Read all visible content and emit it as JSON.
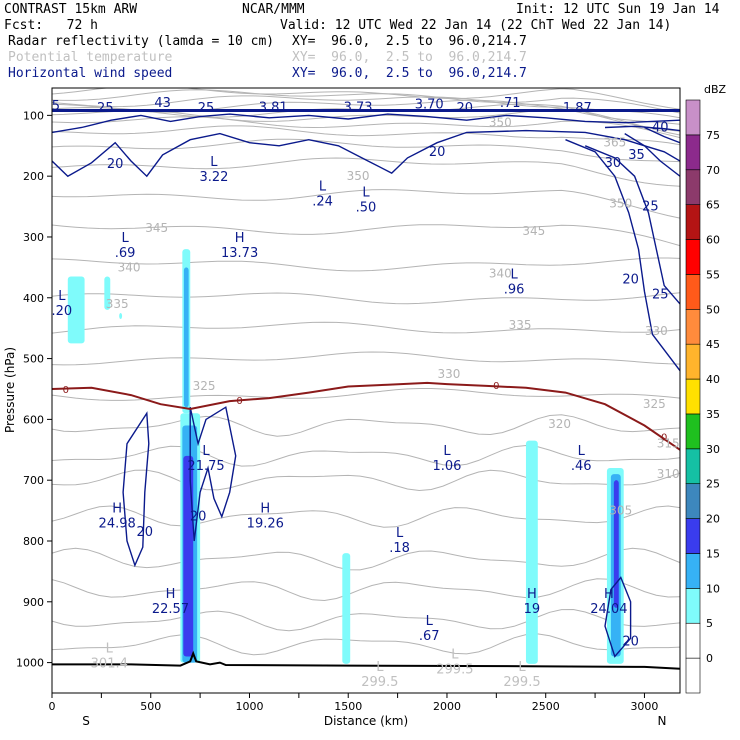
{
  "header": {
    "model": "CONTRAST 15km ARW",
    "org": "NCAR/MMM",
    "init": "Init: 12 UTC Sun 19 Jan 14",
    "fcst": "Fcst:   72 h",
    "valid": "Valid: 12 UTC Wed 22 Jan 14 (22 ChT Wed 22 Jan 14)",
    "fields": [
      {
        "name": "Radar reflectivity (lamda = 10 cm)",
        "coords": "XY=  96.0,  2.5 to  96.0,214.7"
      },
      {
        "name": "Potential temperature",
        "coords": "XY=  96.0,  2.5 to  96.0,214.7"
      },
      {
        "name": "Horizontal wind speed",
        "coords": "XY=  96.0,  2.5 to  96.0,214.7"
      }
    ]
  },
  "chart_data": {
    "type": "cross-section",
    "xlabel": "Distance (km)",
    "ylabel": "Pressure (hPa)",
    "xlim": [
      0,
      3180
    ],
    "ylim": [
      1050,
      55
    ],
    "x_ticks": [
      0,
      250,
      500,
      750,
      1000,
      1250,
      1500,
      1750,
      2000,
      2250,
      2500,
      2750,
      3000
    ],
    "x_tick_labels": [
      "0",
      "500",
      "1000",
      "1500",
      "2000",
      "2500",
      "3000"
    ],
    "x_tick_label_values": [
      0,
      500,
      1000,
      1500,
      2000,
      2500,
      3000
    ],
    "y_ticks": [
      100,
      200,
      300,
      400,
      500,
      600,
      700,
      800,
      900,
      1000
    ],
    "end_labels": {
      "left": "S",
      "right": "N"
    },
    "colorbar": {
      "unit": "dBZ",
      "levels": [
        0,
        5,
        10,
        15,
        20,
        25,
        30,
        35,
        40,
        45,
        50,
        55,
        60,
        65,
        70,
        75
      ],
      "colors": [
        "#ffffff",
        "#ffffff",
        "#7ffbfb",
        "#36b2f5",
        "#3a3cee",
        "#3d87bd",
        "#15c0a4",
        "#1fc01f",
        "#ffe000",
        "#ffb42c",
        "#ff8b3c",
        "#ff5a1a",
        "#ff0000",
        "#b41414",
        "#8c3a6b",
        "#8c2a8c",
        "#c890c8"
      ]
    },
    "freezing_level": {
      "label": "0",
      "points": [
        [
          0,
          550
        ],
        [
          200,
          548
        ],
        [
          400,
          560
        ],
        [
          550,
          575
        ],
        [
          700,
          583
        ],
        [
          900,
          570
        ],
        [
          1100,
          565
        ],
        [
          1300,
          556
        ],
        [
          1500,
          546
        ],
        [
          1700,
          543
        ],
        [
          1900,
          540
        ],
        [
          2000,
          542
        ],
        [
          2200,
          545
        ],
        [
          2400,
          548
        ],
        [
          2600,
          556
        ],
        [
          2800,
          575
        ],
        [
          3000,
          610
        ],
        [
          3180,
          650
        ]
      ]
    },
    "wind_labels": [
      {
        "x": 20,
        "p": 85,
        "text": "5"
      },
      {
        "x": 270,
        "p": 88,
        "text": "25"
      },
      {
        "x": 560,
        "p": 80,
        "text": "43"
      },
      {
        "x": 780,
        "p": 88,
        "text": "25"
      },
      {
        "x": 1120,
        "p": 87,
        "text": "3.81"
      },
      {
        "x": 1550,
        "p": 87,
        "text": "3.73"
      },
      {
        "x": 1910,
        "p": 82,
        "text": "3.70"
      },
      {
        "x": 2090,
        "p": 88,
        "text": "20"
      },
      {
        "x": 2320,
        "p": 80,
        "text": ".71"
      },
      {
        "x": 2660,
        "p": 88,
        "text": "1.87"
      },
      {
        "x": 3080,
        "p": 120,
        "text": "40"
      },
      {
        "x": 320,
        "p": 180,
        "text": "20"
      },
      {
        "x": 1950,
        "p": 160,
        "text": "20"
      },
      {
        "x": 2840,
        "p": 178,
        "text": "30"
      },
      {
        "x": 2960,
        "p": 165,
        "text": "35"
      },
      {
        "x": 3030,
        "p": 250,
        "text": "25"
      },
      {
        "x": 2930,
        "p": 370,
        "text": "20"
      },
      {
        "x": 3080,
        "p": 395,
        "text": "25"
      },
      {
        "x": 470,
        "p": 785,
        "text": "20"
      },
      {
        "x": 740,
        "p": 760,
        "text": "20"
      },
      {
        "x": 2930,
        "p": 965,
        "text": "20"
      }
    ],
    "theta_labels": [
      {
        "x": 530,
        "p": 285,
        "text": "345"
      },
      {
        "x": 390,
        "p": 350,
        "text": "340"
      },
      {
        "x": 330,
        "p": 410,
        "text": "335"
      },
      {
        "x": 1550,
        "p": 200,
        "text": "350"
      },
      {
        "x": 2440,
        "p": 290,
        "text": "345"
      },
      {
        "x": 2270,
        "p": 360,
        "text": "340"
      },
      {
        "x": 2370,
        "p": 445,
        "text": "335"
      },
      {
        "x": 2010,
        "p": 525,
        "text": "330"
      },
      {
        "x": 770,
        "p": 545,
        "text": "325"
      },
      {
        "x": 2570,
        "p": 608,
        "text": "320"
      },
      {
        "x": 3050,
        "p": 575,
        "text": "325"
      },
      {
        "x": 3120,
        "p": 640,
        "text": "315"
      },
      {
        "x": 3120,
        "p": 690,
        "text": "310"
      },
      {
        "x": 2880,
        "p": 750,
        "text": "305"
      },
      {
        "x": 3060,
        "p": 455,
        "text": "330"
      },
      {
        "x": 2850,
        "p": 145,
        "text": "365"
      },
      {
        "x": 2880,
        "p": 245,
        "text": "350"
      },
      {
        "x": 2270,
        "p": 112,
        "text": "350"
      }
    ],
    "dark_labels": [
      {
        "x": 1910,
        "p": 110,
        "text": "..."
      }
    ],
    "extrema": [
      {
        "letter": "L",
        "value": "3.22",
        "x": 820,
        "p": 190,
        "color": "#0b1a8c"
      },
      {
        "letter": "L",
        "value": ".24",
        "x": 1370,
        "p": 230,
        "color": "#0b1a8c"
      },
      {
        "letter": "L",
        "value": ".50",
        "x": 1590,
        "p": 240,
        "color": "#0b1a8c"
      },
      {
        "letter": "L",
        "value": ".69",
        "x": 370,
        "p": 315,
        "color": "#0b1a8c"
      },
      {
        "letter": "H",
        "value": "13.73",
        "x": 950,
        "p": 315,
        "color": "#0b1a8c"
      },
      {
        "letter": "L",
        "value": ".96",
        "x": 2340,
        "p": 375,
        "color": "#0b1a8c"
      },
      {
        "letter": "L",
        "value": ".20",
        "x": 50,
        "p": 410,
        "color": "#0b1a8c"
      },
      {
        "letter": "L",
        "value": "21.75",
        "x": 780,
        "p": 665,
        "color": "#0b1a8c"
      },
      {
        "letter": "L",
        "value": "1.06",
        "x": 2000,
        "p": 665,
        "color": "#0b1a8c"
      },
      {
        "letter": "L",
        "value": ".46",
        "x": 2680,
        "p": 665,
        "color": "#0b1a8c"
      },
      {
        "letter": "H",
        "value": "24.98",
        "x": 330,
        "p": 760,
        "color": "#0b1a8c"
      },
      {
        "letter": "H",
        "value": "19.26",
        "x": 1080,
        "p": 760,
        "color": "#0b1a8c"
      },
      {
        "letter": "L",
        "value": ".18",
        "x": 1760,
        "p": 800,
        "color": "#0b1a8c"
      },
      {
        "letter": "H",
        "value": "22.57",
        "x": 600,
        "p": 900,
        "color": "#0b1a8c"
      },
      {
        "letter": "H",
        "value": "19",
        "x": 2430,
        "p": 900,
        "color": "#0b1a8c"
      },
      {
        "letter": "H",
        "value": "24.04",
        "x": 2820,
        "p": 900,
        "color": "#0b1a8c"
      },
      {
        "letter": "L",
        "value": ".67",
        "x": 1910,
        "p": 945,
        "color": "#0b1a8c"
      },
      {
        "letter": "L",
        "value": "301.4",
        "x": 290,
        "p": 990,
        "color": "#c0c0c0"
      },
      {
        "letter": "L",
        "value": "299.5",
        "x": 1660,
        "p": 1020,
        "color": "#c0c0c0"
      },
      {
        "letter": "L",
        "value": "299.5",
        "x": 2040,
        "p": 1000,
        "color": "#c0c0c0"
      },
      {
        "letter": "L",
        "value": "299.5",
        "x": 2380,
        "p": 1020,
        "color": "#c0c0c0"
      }
    ],
    "reflectivity": [
      {
        "x0": 80,
        "x1": 165,
        "p0": 365,
        "p1": 475,
        "dbz": 7
      },
      {
        "x0": 265,
        "x1": 295,
        "p0": 365,
        "p1": 420,
        "dbz": 7
      },
      {
        "x0": 340,
        "x1": 355,
        "p0": 425,
        "p1": 435,
        "dbz": 7
      },
      {
        "x0": 660,
        "x1": 700,
        "p0": 320,
        "p1": 590,
        "dbz": 7
      },
      {
        "x0": 668,
        "x1": 692,
        "p0": 350,
        "p1": 580,
        "dbz": 12
      },
      {
        "x0": 650,
        "x1": 750,
        "p0": 590,
        "p1": 1000,
        "dbz": 7
      },
      {
        "x0": 660,
        "x1": 735,
        "p0": 610,
        "p1": 1000,
        "dbz": 12
      },
      {
        "x0": 665,
        "x1": 715,
        "p0": 660,
        "p1": 990,
        "dbz": 17
      },
      {
        "x0": 1470,
        "x1": 1510,
        "p0": 820,
        "p1": 1002,
        "dbz": 7
      },
      {
        "x0": 2400,
        "x1": 2460,
        "p0": 635,
        "p1": 1002,
        "dbz": 7
      },
      {
        "x0": 2810,
        "x1": 2895,
        "p0": 680,
        "p1": 1002,
        "dbz": 7
      },
      {
        "x0": 2830,
        "x1": 2880,
        "p0": 690,
        "p1": 990,
        "dbz": 12
      },
      {
        "x0": 2845,
        "x1": 2870,
        "p0": 700,
        "p1": 910,
        "dbz": 17
      }
    ]
  }
}
